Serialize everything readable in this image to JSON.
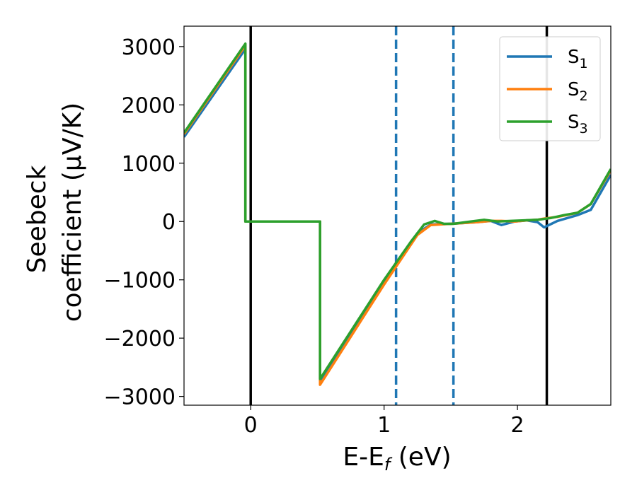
{
  "chart_data": {
    "type": "line",
    "xlabel": "E-E",
    "xlabel_sub": "f",
    "xlabel_unit": " (eV)",
    "ylabel_line1": "Seebeck",
    "ylabel_line2": "coefficient  (μV/K)",
    "xlim": [
      -0.5,
      2.7
    ],
    "ylim": [
      -3150,
      3350
    ],
    "xticks": [
      0,
      1,
      2
    ],
    "xtick_labels": [
      "0",
      "1",
      "2"
    ],
    "yticks": [
      3000,
      2000,
      1000,
      0,
      -1000,
      -2000,
      -3000
    ],
    "ytick_labels": [
      "3000",
      "2000",
      "1000",
      "0",
      "−1000",
      "−2000",
      "−3000"
    ],
    "grid": false,
    "legend_position": "upper right",
    "vlines": [
      {
        "x": 0.0,
        "style": "solid",
        "color": "#000000"
      },
      {
        "x": 2.22,
        "style": "solid",
        "color": "#000000"
      },
      {
        "x": 1.09,
        "style": "dashed",
        "color": "#1f77b4"
      },
      {
        "x": 1.52,
        "style": "dashed",
        "color": "#1f77b4"
      }
    ],
    "series": [
      {
        "name": "S",
        "sub": "1",
        "color": "#1f77b4",
        "points": [
          [
            -0.5,
            1450
          ],
          [
            -0.04,
            2960
          ],
          [
            -0.04,
            0
          ],
          [
            0.52,
            0
          ],
          [
            0.52,
            -2730
          ],
          [
            1.0,
            -1050
          ],
          [
            1.25,
            -200
          ],
          [
            1.35,
            -50
          ],
          [
            1.5,
            -40
          ],
          [
            1.7,
            -10
          ],
          [
            1.8,
            10
          ],
          [
            1.88,
            -60
          ],
          [
            1.98,
            0
          ],
          [
            2.07,
            20
          ],
          [
            2.15,
            -10
          ],
          [
            2.2,
            -100
          ],
          [
            2.3,
            10
          ],
          [
            2.45,
            110
          ],
          [
            2.55,
            200
          ],
          [
            2.7,
            800
          ]
        ]
      },
      {
        "name": "S",
        "sub": "2",
        "color": "#ff7f0e",
        "points": [
          [
            -0.5,
            1500
          ],
          [
            -0.04,
            3020
          ],
          [
            -0.04,
            0
          ],
          [
            0.52,
            0
          ],
          [
            0.52,
            -2800
          ],
          [
            1.0,
            -1080
          ],
          [
            1.25,
            -230
          ],
          [
            1.35,
            -60
          ],
          [
            1.5,
            -40
          ],
          [
            1.7,
            -10
          ],
          [
            1.8,
            10
          ],
          [
            1.88,
            10
          ],
          [
            1.98,
            0
          ],
          [
            2.07,
            20
          ],
          [
            2.15,
            30
          ],
          [
            2.2,
            50
          ],
          [
            2.3,
            80
          ],
          [
            2.45,
            150
          ],
          [
            2.55,
            300
          ],
          [
            2.7,
            880
          ]
        ]
      },
      {
        "name": "S",
        "sub": "3",
        "color": "#2ca02c",
        "points": [
          [
            -0.5,
            1520
          ],
          [
            -0.04,
            3050
          ],
          [
            -0.04,
            0
          ],
          [
            0.52,
            0
          ],
          [
            0.52,
            -2700
          ],
          [
            1.0,
            -1000
          ],
          [
            1.2,
            -350
          ],
          [
            1.3,
            -50
          ],
          [
            1.38,
            10
          ],
          [
            1.45,
            -40
          ],
          [
            1.52,
            -40
          ],
          [
            1.65,
            0
          ],
          [
            1.75,
            30
          ],
          [
            1.85,
            0
          ],
          [
            1.95,
            10
          ],
          [
            2.05,
            20
          ],
          [
            2.15,
            30
          ],
          [
            2.25,
            60
          ],
          [
            2.35,
            110
          ],
          [
            2.45,
            150
          ],
          [
            2.55,
            300
          ],
          [
            2.7,
            900
          ]
        ]
      }
    ]
  }
}
